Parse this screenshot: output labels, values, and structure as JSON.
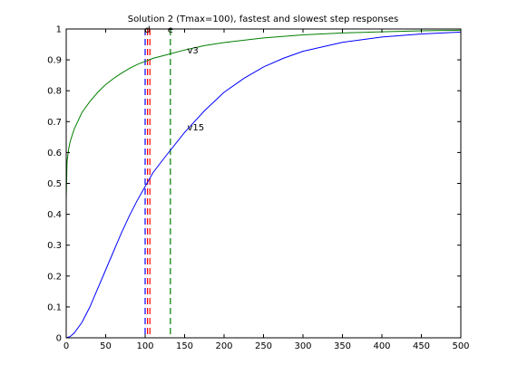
{
  "chart_data": {
    "type": "line",
    "title": "Solution 2 (Tmax=100), fastest and slowest step responses",
    "xlabel": "",
    "ylabel": "",
    "xlim": [
      0,
      500
    ],
    "ylim": [
      0,
      1
    ],
    "x_ticks": [
      0,
      50,
      100,
      150,
      200,
      250,
      300,
      350,
      400,
      450,
      500
    ],
    "y_ticks": [
      0,
      0.1,
      0.2,
      0.3,
      0.4,
      0.5,
      0.6,
      0.7,
      0.8,
      0.9,
      1
    ],
    "grid": false,
    "legend": "none",
    "series": [
      {
        "name": "v3",
        "color": "#007f00",
        "x": [
          0,
          1,
          3,
          5,
          10,
          20,
          30,
          40,
          50,
          60,
          70,
          80,
          90,
          100,
          110,
          125,
          150,
          175,
          200,
          250,
          300,
          350,
          400,
          450,
          500
        ],
        "y": [
          0.45,
          0.57,
          0.61,
          0.635,
          0.675,
          0.73,
          0.765,
          0.795,
          0.82,
          0.84,
          0.857,
          0.872,
          0.885,
          0.895,
          0.905,
          0.915,
          0.932,
          0.946,
          0.956,
          0.971,
          0.981,
          0.987,
          0.991,
          0.994,
          0.996
        ]
      },
      {
        "name": "v15",
        "color": "#0000ff",
        "x": [
          0,
          5,
          10,
          20,
          30,
          40,
          50,
          60,
          70,
          80,
          90,
          100,
          110,
          125,
          150,
          175,
          200,
          225,
          250,
          275,
          300,
          350,
          400,
          450,
          500
        ],
        "y": [
          0,
          0.004,
          0.015,
          0.05,
          0.1,
          0.16,
          0.22,
          0.28,
          0.34,
          0.395,
          0.445,
          0.49,
          0.535,
          0.585,
          0.665,
          0.735,
          0.795,
          0.84,
          0.877,
          0.905,
          0.928,
          0.957,
          0.974,
          0.984,
          0.99
        ]
      }
    ],
    "vlines": [
      {
        "x": 100,
        "color": "#0000ff",
        "label": ""
      },
      {
        "x": 103,
        "color": "#ff0000",
        "label": "d"
      },
      {
        "x": 106,
        "color": "#ff0000",
        "label": ""
      },
      {
        "x": 132,
        "color": "#007f00",
        "label": "e"
      }
    ],
    "annotations": [
      {
        "text": "v3",
        "x": 150,
        "y": 0.93
      },
      {
        "text": "v15",
        "x": 150,
        "y": 0.68
      }
    ]
  }
}
